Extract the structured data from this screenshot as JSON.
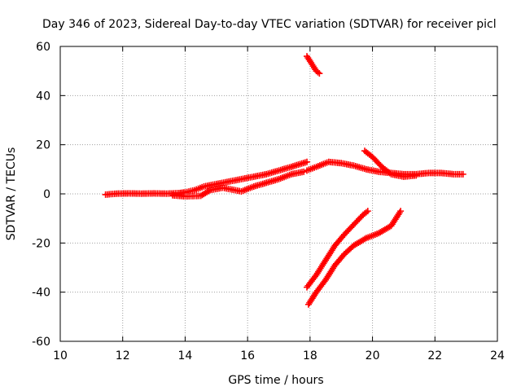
{
  "chart_data": {
    "type": "scatter",
    "title": "Day 346 of 2023, Sidereal Day-to-day VTEC variation (SDTVAR) for receiver picl",
    "xlabel": "GPS time / hours",
    "ylabel": "SDTVAR / TECUs",
    "xlim": [
      10,
      24
    ],
    "ylim": [
      -60,
      60
    ],
    "xticks": [
      10,
      12,
      14,
      16,
      18,
      20,
      22,
      24
    ],
    "yticks": [
      -60,
      -40,
      -20,
      0,
      20,
      40,
      60
    ],
    "grid": true,
    "legend": "none",
    "marker": "plus",
    "series": [
      {
        "name": "main-track-flat",
        "color": "#ff0000",
        "points": [
          [
            11.45,
            -0.3
          ],
          [
            11.8,
            0.1
          ],
          [
            12.2,
            0.2
          ],
          [
            12.6,
            0.1
          ],
          [
            13.0,
            0.2
          ],
          [
            13.4,
            0.1
          ],
          [
            13.8,
            0.3
          ],
          [
            14.0,
            0.6
          ],
          [
            14.3,
            1.5
          ],
          [
            14.6,
            3
          ],
          [
            15.0,
            4
          ],
          [
            15.4,
            5
          ],
          [
            15.8,
            6
          ],
          [
            16.2,
            7
          ],
          [
            16.6,
            8
          ],
          [
            17.0,
            9.5
          ],
          [
            17.4,
            11
          ],
          [
            17.9,
            13
          ]
        ]
      },
      {
        "name": "main-track-lower-band",
        "color": "#ff0000",
        "points": [
          [
            13.6,
            -0.6
          ],
          [
            14.0,
            -1
          ],
          [
            14.5,
            -0.8
          ],
          [
            14.8,
            1.5
          ],
          [
            15.2,
            2.5
          ],
          [
            15.8,
            1
          ],
          [
            16.2,
            3
          ],
          [
            16.6,
            4.5
          ],
          [
            17.0,
            6
          ],
          [
            17.4,
            8
          ],
          [
            17.8,
            9
          ]
        ]
      },
      {
        "name": "main-track-continuation",
        "color": "#ff0000",
        "points": [
          [
            17.9,
            9.5
          ],
          [
            18.2,
            11
          ],
          [
            18.6,
            13
          ],
          [
            19.0,
            12.5
          ],
          [
            19.4,
            11.5
          ],
          [
            19.8,
            10
          ],
          [
            20.2,
            9
          ],
          [
            20.6,
            8.5
          ],
          [
            21.0,
            8
          ],
          [
            21.4,
            8
          ],
          [
            21.8,
            8.5
          ],
          [
            22.2,
            8.5
          ],
          [
            22.6,
            8
          ],
          [
            22.9,
            8
          ]
        ]
      },
      {
        "name": "descending-arc",
        "color": "#ff0000",
        "points": [
          [
            19.75,
            17.5
          ],
          [
            20.0,
            15
          ],
          [
            20.3,
            11
          ],
          [
            20.6,
            8
          ],
          [
            21.0,
            7
          ],
          [
            21.4,
            7.5
          ]
        ]
      },
      {
        "name": "high-segment",
        "color": "#ff0000",
        "points": [
          [
            17.9,
            56
          ],
          [
            18.0,
            54
          ],
          [
            18.1,
            52
          ],
          [
            18.2,
            50
          ],
          [
            18.3,
            49
          ]
        ]
      },
      {
        "name": "rising-arc-upper",
        "color": "#ff0000",
        "points": [
          [
            17.9,
            -38
          ],
          [
            18.2,
            -33
          ],
          [
            18.5,
            -27
          ],
          [
            18.8,
            -21
          ],
          [
            19.1,
            -16.5
          ],
          [
            19.4,
            -12.5
          ],
          [
            19.7,
            -8.5
          ],
          [
            19.85,
            -7
          ]
        ]
      },
      {
        "name": "rising-arc-lower",
        "color": "#ff0000",
        "points": [
          [
            17.95,
            -45
          ],
          [
            18.2,
            -40
          ],
          [
            18.5,
            -35
          ],
          [
            18.8,
            -29
          ],
          [
            19.1,
            -24.5
          ],
          [
            19.4,
            -21
          ],
          [
            19.8,
            -18
          ],
          [
            20.2,
            -16
          ],
          [
            20.6,
            -13
          ],
          [
            20.9,
            -7
          ]
        ]
      }
    ]
  }
}
